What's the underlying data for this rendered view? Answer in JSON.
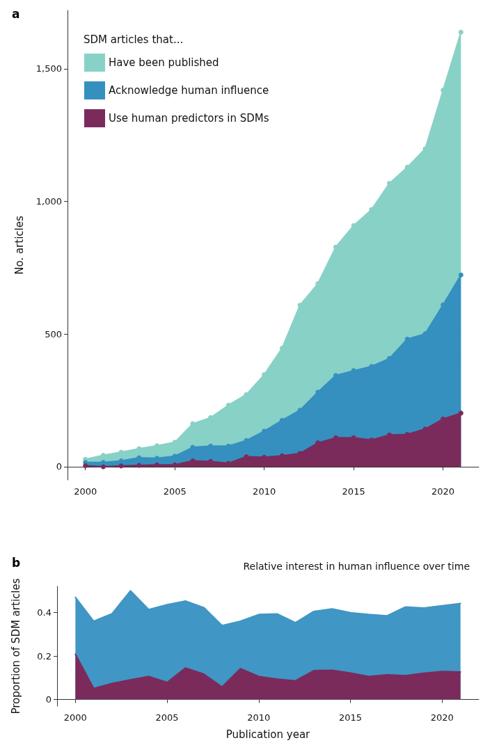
{
  "chart_data": [
    {
      "type": "area",
      "annotations": [
        "a"
      ],
      "ylabel": "No. articles",
      "legend_title": "SDM articles that...",
      "legend": "top left",
      "marker": "circle",
      "grid": false,
      "x": [
        2000,
        2001,
        2002,
        2003,
        2004,
        2005,
        2006,
        2007,
        2008,
        2009,
        2010,
        2011,
        2012,
        2013,
        2014,
        2015,
        2016,
        2017,
        2018,
        2019,
        2020,
        2021
      ],
      "xlim": [
        1999,
        2022
      ],
      "xticks": [
        2000,
        2005,
        2010,
        2015,
        2020
      ],
      "ylim": [
        -50,
        1720
      ],
      "yticks": [
        0,
        500,
        {
          "value": 1000,
          "label": "1,000"
        },
        {
          "value": 1500,
          "label": "1,500"
        }
      ],
      "series": [
        {
          "name": "Have been published",
          "color": "#88d1c7",
          "values": [
            28,
            43,
            55,
            68,
            79,
            92,
            162,
            185,
            232,
            272,
            347,
            447,
            609,
            690,
            828,
            909,
            969,
            1068,
            1129,
            1198,
            1419,
            1638
          ]
        },
        {
          "name": "Acknowledge human influence",
          "color": "#3590c0",
          "values": [
            16,
            16,
            22,
            34,
            32,
            40,
            73,
            78,
            78,
            99,
            134,
            175,
            213,
            281,
            344,
            362,
            378,
            408,
            481,
            501,
            610,
            723
          ]
        },
        {
          "name": "Use human predictors in SDMs",
          "color": "#7b2b5b",
          "values": [
            4,
            0,
            3,
            5,
            7,
            7,
            22,
            20,
            13,
            38,
            36,
            41,
            50,
            90,
            109,
            109,
            101,
            120,
            122,
            142,
            180,
            202
          ]
        }
      ]
    },
    {
      "type": "area",
      "annotations": [
        "b"
      ],
      "title": "Relative interest in human influence over time",
      "xlabel": "Publication year",
      "ylabel": "Proportion of SDM articles",
      "marker": "none",
      "grid": false,
      "x": [
        2000,
        2001,
        2002,
        2003,
        2004,
        2005,
        2006,
        2007,
        2008,
        2009,
        2010,
        2011,
        2012,
        2013,
        2014,
        2015,
        2016,
        2017,
        2018,
        2019,
        2020,
        2021
      ],
      "xlim": [
        1999,
        2022
      ],
      "xticks": [
        2000,
        2005,
        2010,
        2015,
        2020
      ],
      "ylim": [
        -0.03,
        0.52
      ],
      "yticks": [
        0,
        0.2,
        0.4
      ],
      "series": [
        {
          "color": "#4096c4",
          "values": [
            0.47,
            0.36,
            0.395,
            0.5,
            0.414,
            0.436,
            0.453,
            0.423,
            0.34,
            0.36,
            0.391,
            0.394,
            0.353,
            0.405,
            0.417,
            0.399,
            0.391,
            0.385,
            0.426,
            0.421,
            0.431,
            0.442
          ]
        },
        {
          "color": "#7b2b5b",
          "values": [
            0.208,
            0.051,
            0.074,
            0.091,
            0.106,
            0.079,
            0.145,
            0.117,
            0.058,
            0.142,
            0.106,
            0.094,
            0.086,
            0.133,
            0.135,
            0.122,
            0.106,
            0.114,
            0.11,
            0.121,
            0.129,
            0.127
          ]
        }
      ]
    }
  ]
}
